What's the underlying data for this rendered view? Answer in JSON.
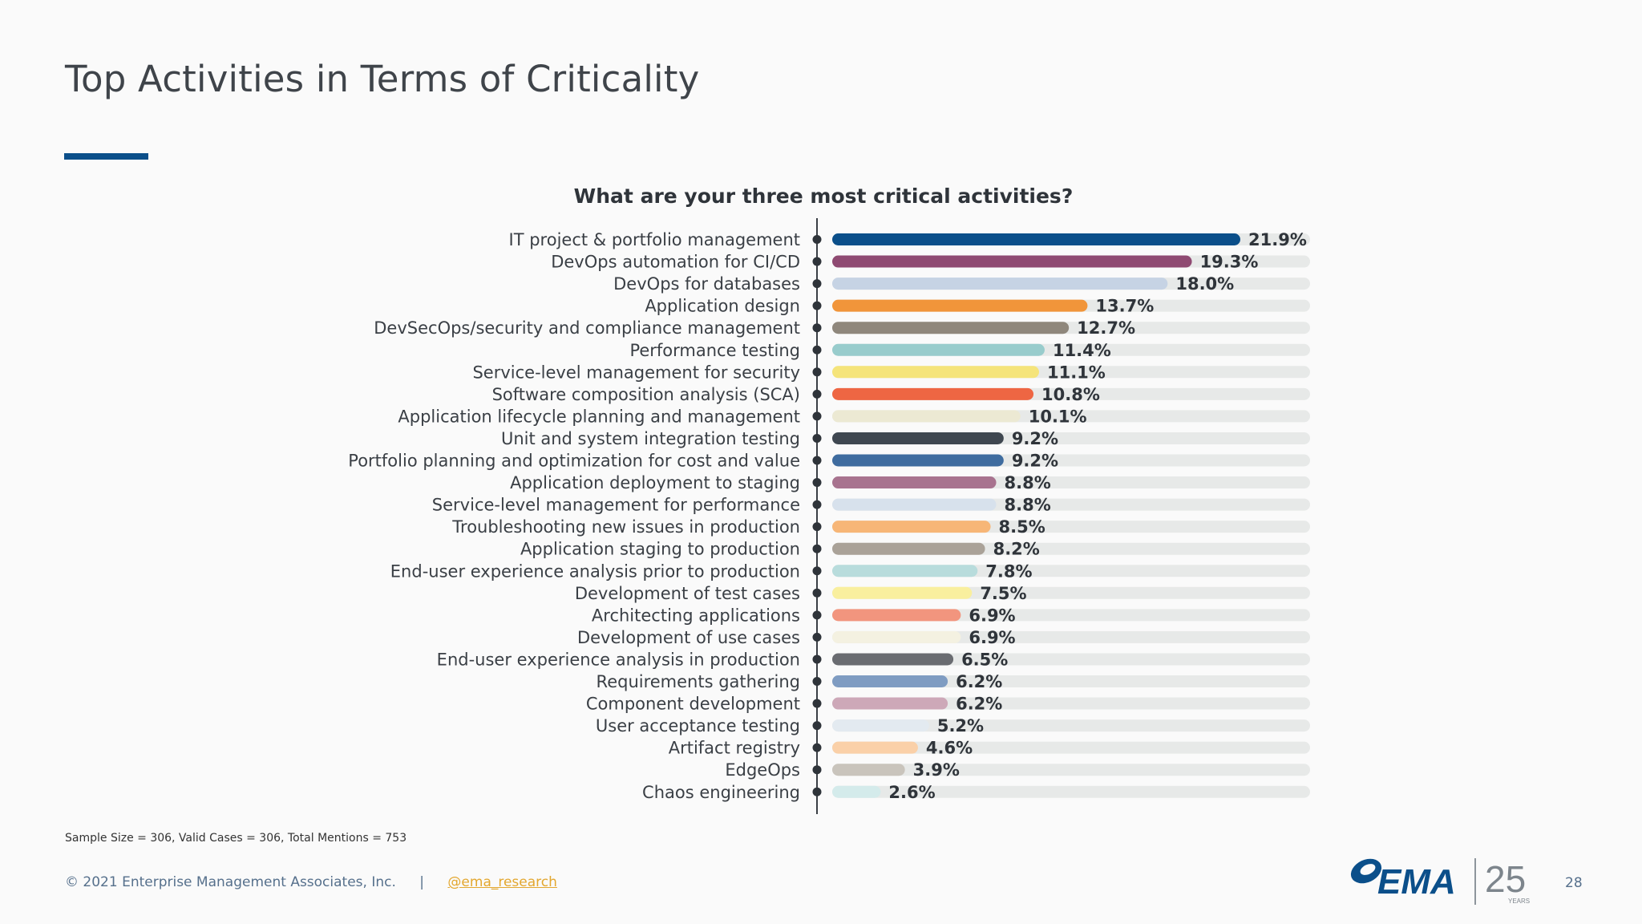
{
  "page": {
    "title": "Top Activities in Terms of Criticality",
    "footnote": "Sample Size = 306, Valid Cases = 306, Total Mentions = 753",
    "copyright": "© 2021 Enterprise Management Associates, Inc.",
    "separator": "|",
    "handle": "@ema_research",
    "logo_text": "EMA",
    "anniversary_number": "25",
    "anniversary_label": "YEARS",
    "page_number": "28",
    "accent_color": "#0b4f8a"
  },
  "chart_data": {
    "type": "bar",
    "orientation": "horizontal",
    "title": "What are your three most critical activities?",
    "xlabel": "",
    "ylabel": "",
    "xlim": [
      0,
      40
    ],
    "grid": false,
    "legend": "none",
    "categories": [
      "IT project & portfolio management",
      "DevOps automation for CI/CD",
      "DevOps for databases",
      "Application design",
      "DevSecOps/security and compliance management",
      "Performance testing",
      "Service-level management for security",
      "Software composition analysis (SCA)",
      "Application lifecycle planning and management",
      "Unit and system integration testing",
      "Portfolio planning and optimization for cost and value",
      "Application deployment to staging",
      "Service-level management for performance",
      "Troubleshooting new issues in production",
      "Application staging to production",
      "End-user experience analysis prior to production",
      "Development of test cases",
      "Architecting applications",
      "Development of use cases",
      "End-user experience analysis in production",
      "Requirements gathering",
      "Component development",
      "User acceptance testing",
      "Artifact registry",
      "EdgeOps",
      "Chaos engineering"
    ],
    "values": [
      21.9,
      19.3,
      18.0,
      13.7,
      12.7,
      11.4,
      11.1,
      10.8,
      10.1,
      9.2,
      9.2,
      8.8,
      8.8,
      8.5,
      8.2,
      7.8,
      7.5,
      6.9,
      6.9,
      6.5,
      6.2,
      6.2,
      5.2,
      4.6,
      3.9,
      2.6
    ],
    "value_labels": [
      "21.9%",
      "19.3%",
      "18.0%",
      "13.7%",
      "12.7%",
      "11.4%",
      "11.1%",
      "10.8%",
      "10.1%",
      "9.2%",
      "9.2%",
      "8.8%",
      "8.8%",
      "8.5%",
      "8.2%",
      "7.8%",
      "7.5%",
      "6.9%",
      "6.9%",
      "6.5%",
      "6.2%",
      "6.2%",
      "5.2%",
      "4.6%",
      "3.9%",
      "2.6%"
    ],
    "colors": [
      "#0b4f8a",
      "#8f4a72",
      "#c6d3e4",
      "#f1953a",
      "#8f877c",
      "#98cccc",
      "#f5e47a",
      "#ee6643",
      "#ece9d3",
      "#3f4750",
      "#3f6c9f",
      "#a8738f",
      "#d7e1ec",
      "#f7b677",
      "#aaa298",
      "#b8dcdc",
      "#f9ef9e",
      "#f2957e",
      "#f4f1e1",
      "#6a6c71",
      "#7f9cc2",
      "#cda8b8",
      "#e3eaf0",
      "#fad0a8",
      "#c9c4bc",
      "#d4ebeb"
    ],
    "track_color": "#e7e9e8"
  }
}
